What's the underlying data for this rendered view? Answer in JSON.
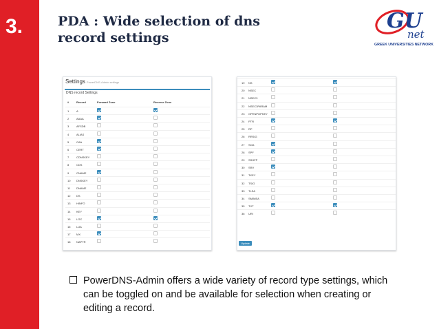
{
  "slide": {
    "number": "3.",
    "title": "PDA : Wide selection of dns record settings",
    "colors": {
      "accent_red": "#e01f26",
      "checkbox_blue": "#3c8dbc",
      "title_color": "#1f2a44"
    }
  },
  "logo": {
    "text_gu": "GU",
    "text_net": "net",
    "caption": "GREEK UNIVERSITIES NETWORK",
    "icon": "gunet-logo"
  },
  "settings": {
    "title": "Settings",
    "subtitle": "PowerDNS-Admin settings",
    "box_title": "DNS record Settings",
    "columns": {
      "num": "#",
      "record": "Record",
      "forward": "Forward Zone",
      "reverse": "Reverse Zone"
    },
    "left_records": [
      {
        "num": "1",
        "name": "A",
        "fwd": true,
        "rev": true
      },
      {
        "num": "2",
        "name": "AAAA",
        "fwd": true,
        "rev": false
      },
      {
        "num": "3",
        "name": "AFSDB",
        "fwd": false,
        "rev": false
      },
      {
        "num": "4",
        "name": "ALIAS",
        "fwd": false,
        "rev": false
      },
      {
        "num": "5",
        "name": "CAA",
        "fwd": true,
        "rev": false
      },
      {
        "num": "6",
        "name": "CERT",
        "fwd": true,
        "rev": false
      },
      {
        "num": "7",
        "name": "CDNSKEY",
        "fwd": false,
        "rev": false
      },
      {
        "num": "8",
        "name": "CDS",
        "fwd": false,
        "rev": false
      },
      {
        "num": "9",
        "name": "CNAME",
        "fwd": true,
        "rev": false
      },
      {
        "num": "10",
        "name": "DNSKEY",
        "fwd": false,
        "rev": false
      },
      {
        "num": "11",
        "name": "DNAME",
        "fwd": false,
        "rev": false
      },
      {
        "num": "12",
        "name": "DS",
        "fwd": false,
        "rev": false
      },
      {
        "num": "13",
        "name": "HINFO",
        "fwd": false,
        "rev": false
      },
      {
        "num": "14",
        "name": "KEY",
        "fwd": false,
        "rev": false
      },
      {
        "num": "15",
        "name": "LOC",
        "fwd": true,
        "rev": true
      },
      {
        "num": "16",
        "name": "LUA",
        "fwd": false,
        "rev": false
      },
      {
        "num": "17",
        "name": "MX",
        "fwd": true,
        "rev": false
      },
      {
        "num": "18",
        "name": "NAPTR",
        "fwd": false,
        "rev": false
      }
    ],
    "right_records": [
      {
        "num": "19",
        "name": "NS",
        "fwd": true,
        "rev": true
      },
      {
        "num": "20",
        "name": "NSEC",
        "fwd": false,
        "rev": false
      },
      {
        "num": "21",
        "name": "NSEC3",
        "fwd": false,
        "rev": false
      },
      {
        "num": "22",
        "name": "NSEC3PARAM",
        "fwd": false,
        "rev": false
      },
      {
        "num": "23",
        "name": "OPENPGPKEY",
        "fwd": false,
        "rev": false
      },
      {
        "num": "24",
        "name": "PTR",
        "fwd": true,
        "rev": true
      },
      {
        "num": "25",
        "name": "RP",
        "fwd": false,
        "rev": false
      },
      {
        "num": "26",
        "name": "RRSIG",
        "fwd": false,
        "rev": false
      },
      {
        "num": "27",
        "name": "SOA",
        "fwd": true,
        "rev": false
      },
      {
        "num": "28",
        "name": "SPF",
        "fwd": true,
        "rev": false
      },
      {
        "num": "29",
        "name": "SSHFP",
        "fwd": false,
        "rev": false
      },
      {
        "num": "30",
        "name": "SRV",
        "fwd": true,
        "rev": false
      },
      {
        "num": "31",
        "name": "TKEY",
        "fwd": false,
        "rev": false
      },
      {
        "num": "32",
        "name": "TSIG",
        "fwd": false,
        "rev": false
      },
      {
        "num": "33",
        "name": "TLSA",
        "fwd": false,
        "rev": false
      },
      {
        "num": "34",
        "name": "SMIMEA",
        "fwd": false,
        "rev": false
      },
      {
        "num": "35",
        "name": "TXT",
        "fwd": true,
        "rev": true
      },
      {
        "num": "36",
        "name": "URI",
        "fwd": false,
        "rev": false
      }
    ],
    "update_label": "Update"
  },
  "bullet": {
    "icon": "checkbox-bullet-icon",
    "text": "PowerDNS-Admin offers a wide variety of record type settings, which can be toggled on and be available for selection when creating or editing a record."
  }
}
